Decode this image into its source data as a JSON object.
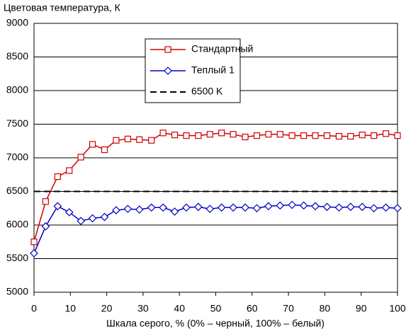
{
  "chart_data": {
    "type": "line",
    "title": "Цветовая температура, К",
    "x_label": "Шкала серого, % (0% – черный, 100% – белый)",
    "x": [
      0,
      3.2,
      6.5,
      9.7,
      12.9,
      16.1,
      19.4,
      22.6,
      25.8,
      29,
      32.3,
      35.5,
      38.7,
      41.9,
      45.2,
      48.4,
      51.6,
      54.8,
      58.1,
      61.3,
      64.5,
      67.7,
      71,
      74.2,
      77.4,
      80.6,
      83.9,
      87.1,
      90.3,
      93.5,
      96.8,
      100
    ],
    "series": [
      {
        "name": "Стандартный",
        "color": "#d00000",
        "marker": "square",
        "values": [
          5750,
          6350,
          6720,
          6810,
          7010,
          7200,
          7120,
          7260,
          7280,
          7270,
          7260,
          7370,
          7340,
          7330,
          7330,
          7350,
          7370,
          7350,
          7310,
          7330,
          7350,
          7350,
          7330,
          7330,
          7330,
          7330,
          7320,
          7320,
          7340,
          7330,
          7360,
          7330
        ]
      },
      {
        "name": "Теплый 1",
        "color": "#0000c8",
        "marker": "diamond",
        "values": [
          5580,
          5980,
          6280,
          6190,
          6060,
          6100,
          6120,
          6220,
          6240,
          6230,
          6260,
          6260,
          6200,
          6260,
          6270,
          6240,
          6260,
          6260,
          6260,
          6250,
          6280,
          6290,
          6300,
          6290,
          6280,
          6270,
          6260,
          6270,
          6270,
          6250,
          6260,
          6250
        ]
      },
      {
        "name": "6500 K",
        "color": "#000000",
        "dashed": true,
        "x": [
          0,
          100
        ],
        "values": [
          6500,
          6500
        ]
      }
    ],
    "xlim": [
      0,
      100
    ],
    "xticks": [
      0,
      10,
      20,
      30,
      40,
      50,
      60,
      70,
      80,
      90,
      100
    ],
    "ylim": [
      5000,
      9000
    ],
    "yticks": [
      5000,
      5500,
      6000,
      6500,
      7000,
      7500,
      8000,
      8500,
      9000
    ],
    "grid": true
  }
}
